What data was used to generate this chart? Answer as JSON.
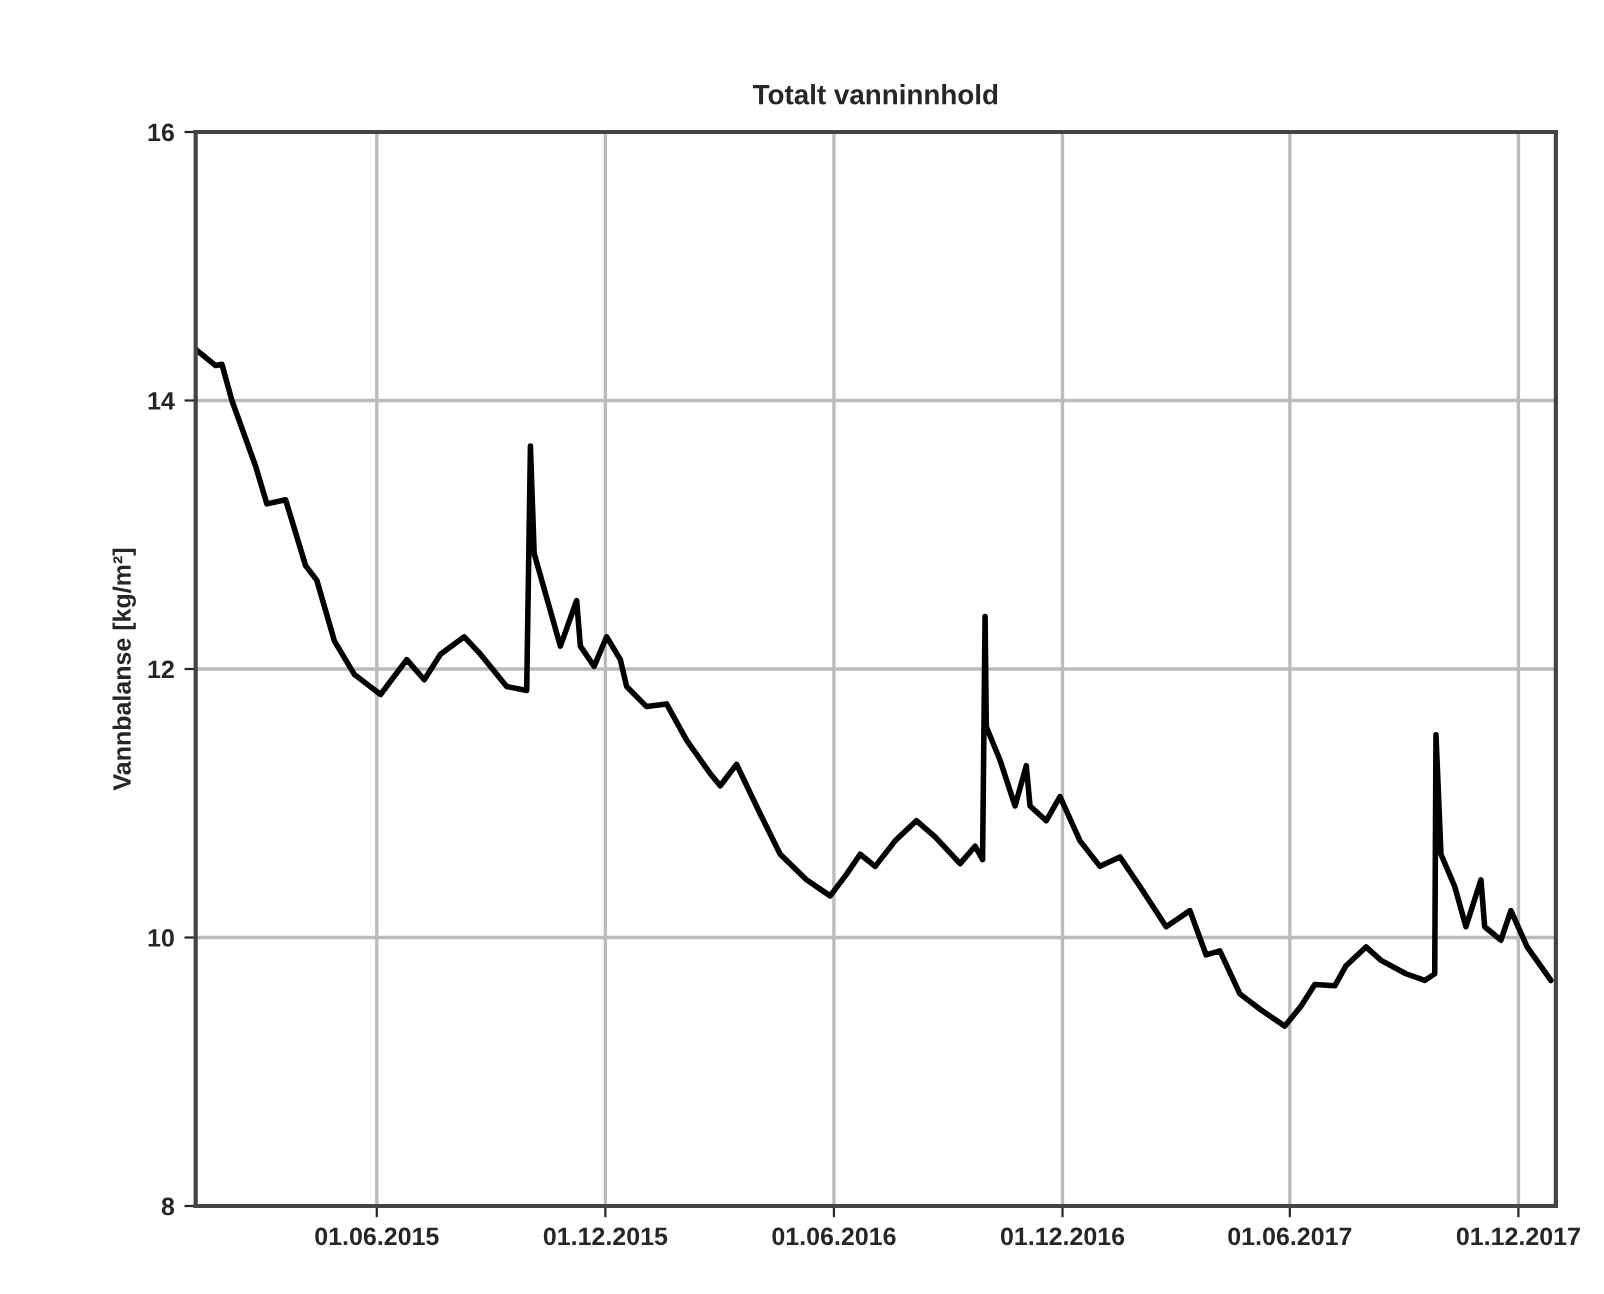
{
  "chart_data": {
    "type": "line",
    "title": "Totalt vanninnhold",
    "ylabel": "Vannbalanse [kg/m²]",
    "x": [
      "2015-01-07",
      "2015-01-23",
      "2015-01-28",
      "2015-02-05",
      "2015-02-24",
      "2015-03-05",
      "2015-03-20",
      "2015-04-05",
      "2015-04-14",
      "2015-04-28",
      "2015-05-14",
      "2015-06-04",
      "2015-06-25",
      "2015-07-09",
      "2015-07-22",
      "2015-08-10",
      "2015-08-23",
      "2015-09-13",
      "2015-09-29",
      "2015-10-02",
      "2015-10-05",
      "2015-10-26",
      "2015-11-08",
      "2015-11-11",
      "2015-11-22",
      "2015-12-02",
      "2015-12-13",
      "2015-12-18",
      "2016-01-03",
      "2016-01-19",
      "2016-02-04",
      "2016-02-23",
      "2016-03-02",
      "2016-03-15",
      "2016-04-03",
      "2016-04-19",
      "2016-05-10",
      "2016-05-29",
      "2016-06-11",
      "2016-06-22",
      "2016-07-04",
      "2016-07-20",
      "2016-08-06",
      "2016-08-21",
      "2016-09-10",
      "2016-09-22",
      "2016-09-28",
      "2016-09-30",
      "2016-10-01",
      "2016-10-12",
      "2016-10-24",
      "2016-11-02",
      "2016-11-05",
      "2016-11-18",
      "2016-11-29",
      "2016-12-15",
      "2016-12-31",
      "2017-01-16",
      "2017-02-01",
      "2017-02-22",
      "2017-03-13",
      "2017-03-26",
      "2017-04-06",
      "2017-04-22",
      "2017-05-09",
      "2017-05-28",
      "2017-06-10",
      "2017-06-21",
      "2017-07-07",
      "2017-07-16",
      "2017-08-01",
      "2017-08-13",
      "2017-09-02",
      "2017-09-17",
      "2017-09-25",
      "2017-09-26",
      "2017-09-30",
      "2017-10-11",
      "2017-10-20",
      "2017-11-01",
      "2017-11-04",
      "2017-11-17",
      "2017-11-25",
      "2017-12-08",
      "2017-12-27"
    ],
    "series": [
      {
        "color": "#000000",
        "values": [
          14.38,
          14.26,
          14.27,
          14.0,
          13.51,
          13.23,
          13.26,
          12.77,
          12.66,
          12.21,
          11.96,
          11.81,
          12.07,
          11.92,
          12.11,
          12.24,
          12.11,
          11.87,
          11.84,
          13.66,
          12.86,
          12.17,
          12.51,
          12.17,
          12.02,
          12.24,
          12.07,
          11.87,
          11.72,
          11.74,
          11.47,
          11.22,
          11.13,
          11.29,
          10.92,
          10.62,
          10.43,
          10.31,
          10.47,
          10.62,
          10.53,
          10.72,
          10.87,
          10.75,
          10.55,
          10.68,
          10.58,
          12.39,
          11.57,
          11.32,
          10.98,
          11.28,
          10.98,
          10.87,
          11.05,
          10.72,
          10.53,
          10.6,
          10.38,
          10.08,
          10.2,
          9.87,
          9.9,
          9.58,
          9.46,
          9.34,
          9.49,
          9.65,
          9.64,
          9.79,
          9.93,
          9.83,
          9.73,
          9.68,
          9.73,
          11.51,
          10.62,
          10.38,
          10.08,
          10.43,
          10.08,
          9.98,
          10.2,
          9.93,
          9.68
        ]
      }
    ],
    "xlim": [
      "2015-01-07",
      "2017-12-31"
    ],
    "xticks": [
      {
        "value": "2015-06-01",
        "label": "01.06.2015"
      },
      {
        "value": "2015-12-01",
        "label": "01.12.2015"
      },
      {
        "value": "2016-06-01",
        "label": "01.06.2016"
      },
      {
        "value": "2016-12-01",
        "label": "01.12.2016"
      },
      {
        "value": "2017-06-01",
        "label": "01.06.2017"
      },
      {
        "value": "2017-12-01",
        "label": "01.12.2017"
      }
    ],
    "ylim": [
      8,
      16
    ],
    "yticks": [
      8,
      10,
      12,
      14,
      16
    ],
    "grid": true,
    "line_style": "solid"
  }
}
